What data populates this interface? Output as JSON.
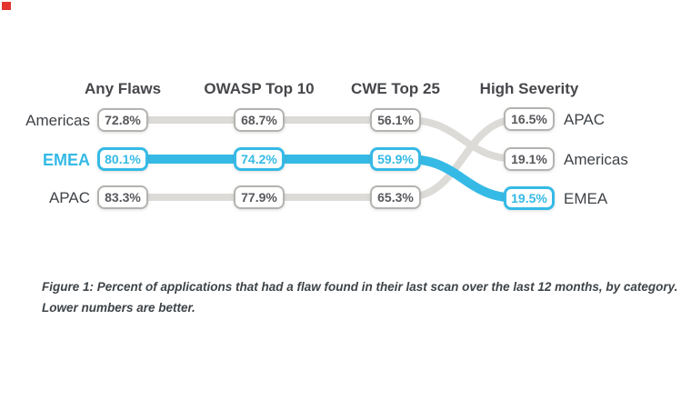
{
  "marker": {
    "color": "#e5342f"
  },
  "colors": {
    "highlight_blue": "#35bae6",
    "line_gray": "#dcdbd8",
    "box_border_gray": "#b5b3b0",
    "box_text_gray": "#57585c",
    "label_dark": "#3f4347",
    "header_dark": "#46474b"
  },
  "chart_data": {
    "type": "line",
    "subtype": "bump-slope",
    "title": "",
    "grid": false,
    "legend_position": "none",
    "categories": [
      "Any Flaws",
      "OWASP Top 10",
      "CWE Top 25",
      "High Severity"
    ],
    "series": [
      {
        "name": "Americas",
        "highlighted": false,
        "values": [
          72.8,
          68.7,
          56.1,
          19.1
        ],
        "labels": [
          "72.8%",
          "68.7%",
          "56.1%",
          "19.1%"
        ]
      },
      {
        "name": "EMEA",
        "highlighted": true,
        "values": [
          80.1,
          74.2,
          59.9,
          19.5
        ],
        "labels": [
          "80.1%",
          "74.2%",
          "59.9%",
          "19.5%"
        ]
      },
      {
        "name": "APAC",
        "highlighted": false,
        "values": [
          83.3,
          77.9,
          65.3,
          16.5
        ],
        "labels": [
          "83.3%",
          "77.9%",
          "65.3%",
          "16.5%"
        ]
      }
    ],
    "left_order": [
      "Americas",
      "EMEA",
      "APAC"
    ],
    "right_order": [
      "APAC",
      "Americas",
      "EMEA"
    ],
    "caption_line1": "Figure 1: Percent of applications that had a flaw found in their last scan over the last 12 months, by category.",
    "caption_line2": "Lower numbers are better."
  }
}
